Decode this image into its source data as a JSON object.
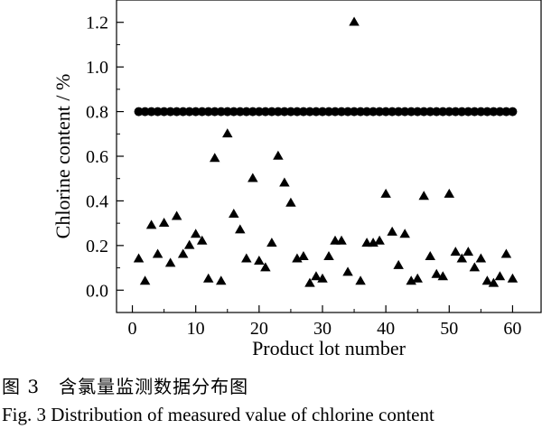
{
  "chart_data": {
    "type": "scatter",
    "xlabel": "Product lot number",
    "ylabel": "Chlorine content / %",
    "xlim": [
      -2.5,
      64.5
    ],
    "ylim": [
      -0.1,
      1.3
    ],
    "xticks": [
      "0",
      "10",
      "20",
      "30",
      "40",
      "50",
      "60"
    ],
    "yticks": [
      "0.0",
      "0.2",
      "0.4",
      "0.6",
      "0.8",
      "1.0",
      "1.2"
    ],
    "series": [
      {
        "marker": "circle",
        "color": "#000000",
        "x": [
          1,
          2,
          3,
          4,
          5,
          6,
          7,
          8,
          9,
          10,
          11,
          12,
          13,
          14,
          15,
          16,
          17,
          18,
          19,
          20,
          21,
          22,
          23,
          24,
          25,
          26,
          27,
          28,
          29,
          30,
          31,
          32,
          33,
          34,
          35,
          36,
          37,
          38,
          39,
          40,
          41,
          42,
          43,
          44,
          45,
          46,
          47,
          48,
          49,
          50,
          51,
          52,
          53,
          54,
          55,
          56,
          57,
          58,
          59,
          60
        ],
        "y": [
          0.8,
          0.8,
          0.8,
          0.8,
          0.8,
          0.8,
          0.8,
          0.8,
          0.8,
          0.8,
          0.8,
          0.8,
          0.8,
          0.8,
          0.8,
          0.8,
          0.8,
          0.8,
          0.8,
          0.8,
          0.8,
          0.8,
          0.8,
          0.8,
          0.8,
          0.8,
          0.8,
          0.8,
          0.8,
          0.8,
          0.8,
          0.8,
          0.8,
          0.8,
          0.8,
          0.8,
          0.8,
          0.8,
          0.8,
          0.8,
          0.8,
          0.8,
          0.8,
          0.8,
          0.8,
          0.8,
          0.8,
          0.8,
          0.8,
          0.8,
          0.8,
          0.8,
          0.8,
          0.8,
          0.8,
          0.8,
          0.8,
          0.8,
          0.8,
          0.8
        ]
      },
      {
        "marker": "triangle",
        "color": "#000000",
        "x": [
          1,
          2,
          3,
          4,
          5,
          6,
          7,
          8,
          9,
          10,
          11,
          12,
          13,
          14,
          15,
          16,
          17,
          18,
          19,
          20,
          21,
          22,
          23,
          24,
          25,
          26,
          27,
          28,
          29,
          30,
          31,
          32,
          33,
          34,
          35,
          36,
          37,
          38,
          39,
          40,
          41,
          42,
          43,
          44,
          45,
          46,
          47,
          48,
          49,
          50,
          51,
          52,
          53,
          54,
          55,
          56,
          57,
          58,
          59,
          60
        ],
        "y": [
          0.14,
          0.04,
          0.29,
          0.16,
          0.3,
          0.12,
          0.33,
          0.16,
          0.2,
          0.25,
          0.22,
          0.05,
          0.59,
          0.04,
          0.7,
          0.34,
          0.27,
          0.14,
          0.5,
          0.13,
          0.1,
          0.21,
          0.6,
          0.48,
          0.39,
          0.14,
          0.15,
          0.03,
          0.06,
          0.05,
          0.15,
          0.22,
          0.22,
          0.08,
          1.2,
          0.04,
          0.21,
          0.21,
          0.22,
          0.43,
          0.26,
          0.11,
          0.25,
          0.04,
          0.05,
          0.42,
          0.15,
          0.07,
          0.06,
          0.43,
          0.17,
          0.14,
          0.17,
          0.1,
          0.14,
          0.04,
          0.03,
          0.06,
          0.16,
          0.05
        ]
      }
    ]
  },
  "captions": {
    "zh": "图 3　含氯量监测数据分布图",
    "en": "Fig. 3    Distribution of measured value of chlorine content"
  }
}
